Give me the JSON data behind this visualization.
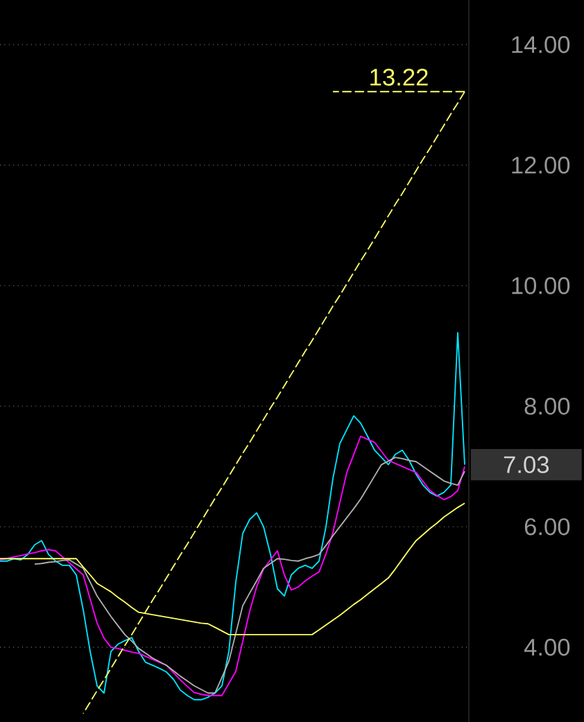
{
  "chart_data": {
    "type": "line",
    "ylim": [
      2.76,
      14.74
    ],
    "yticks": [
      {
        "value": 4,
        "label": "4.00"
      },
      {
        "value": 6,
        "label": "6.00"
      },
      {
        "value": 8,
        "label": "8.00"
      },
      {
        "value": 10,
        "label": "10.00"
      },
      {
        "value": 12,
        "label": "12.00"
      },
      {
        "value": 14,
        "label": "14.00"
      }
    ],
    "tick_labels": "y",
    "grid": "y",
    "marker": "none",
    "categories": [
      null,
      null,
      null,
      null,
      null,
      null,
      null,
      null,
      null,
      null,
      null,
      null,
      null,
      null,
      null,
      null,
      null,
      null,
      null,
      null,
      null,
      null,
      null,
      null,
      null,
      null,
      null,
      null,
      null,
      null,
      null,
      null,
      null,
      null,
      null,
      null,
      null,
      null,
      null,
      null,
      null,
      null,
      null,
      null,
      null,
      null,
      null,
      null,
      null,
      null,
      null,
      null,
      null,
      null,
      null,
      null,
      null,
      null,
      null,
      null,
      null,
      null,
      null,
      null,
      null,
      null,
      null,
      null
    ],
    "series": [
      {
        "color": "#00e5ff",
        "values": [
          5.43,
          5.43,
          5.47,
          5.45,
          5.54,
          5.7,
          5.77,
          5.54,
          5.43,
          5.36,
          5.36,
          5.2,
          4.62,
          3.93,
          3.36,
          3.24,
          3.93,
          4.05,
          4.11,
          4.16,
          3.93,
          3.75,
          3.7,
          3.65,
          3.59,
          3.47,
          3.29,
          3.2,
          3.13,
          3.13,
          3.17,
          3.24,
          3.36,
          3.93,
          5.08,
          5.89,
          6.12,
          6.23,
          6.0,
          5.54,
          4.97,
          4.85,
          5.2,
          5.31,
          5.36,
          5.31,
          5.43,
          6.0,
          6.8,
          7.38,
          7.61,
          7.84,
          7.72,
          7.5,
          7.27,
          7.15,
          7.03,
          7.2,
          7.27,
          7.1,
          6.87,
          6.69,
          6.57,
          6.51,
          6.57,
          6.69,
          9.22,
          7.03
        ]
      },
      {
        "color": "#ff00ff",
        "values": [
          5.45,
          5.47,
          5.5,
          5.52,
          5.55,
          5.57,
          5.6,
          5.62,
          5.6,
          5.5,
          5.4,
          5.3,
          5.2,
          4.8,
          4.4,
          4.15,
          4.0,
          3.98,
          3.95,
          3.92,
          3.9,
          3.85,
          3.8,
          3.75,
          3.7,
          3.58,
          3.46,
          3.35,
          3.25,
          3.22,
          3.2,
          3.2,
          3.2,
          3.4,
          3.6,
          4.1,
          4.6,
          5.0,
          5.3,
          5.45,
          5.6,
          5.2,
          4.95,
          5.0,
          5.1,
          5.18,
          5.25,
          5.55,
          5.9,
          6.4,
          6.9,
          7.2,
          7.5,
          7.45,
          7.4,
          7.25,
          7.1,
          7.05,
          7.0,
          6.95,
          6.9,
          6.75,
          6.6,
          6.52,
          6.45,
          6.5,
          6.6,
          7.0
        ]
      },
      {
        "color": "#b0b0b0",
        "values": [
          null,
          null,
          null,
          null,
          null,
          5.38,
          5.39,
          5.41,
          5.42,
          5.44,
          5.45,
          5.38,
          5.31,
          5.08,
          4.85,
          4.68,
          4.51,
          4.36,
          4.21,
          4.1,
          3.98,
          3.9,
          3.82,
          3.76,
          3.7,
          3.61,
          3.52,
          3.44,
          3.36,
          3.3,
          3.24,
          3.24,
          3.5,
          3.77,
          4.23,
          4.69,
          4.9,
          5.1,
          5.31,
          5.39,
          5.47,
          5.46,
          5.44,
          5.43,
          5.47,
          5.5,
          5.54,
          5.69,
          5.85,
          6.0,
          6.15,
          6.3,
          6.46,
          6.65,
          6.84,
          7.03,
          7.09,
          7.15,
          7.13,
          7.1,
          7.08,
          7.0,
          6.92,
          6.84,
          6.76,
          6.72,
          6.69,
          6.92
        ]
      },
      {
        "color": "#ffff66",
        "values": [
          5.47,
          5.47,
          5.47,
          5.47,
          5.47,
          5.47,
          5.47,
          5.47,
          5.47,
          5.47,
          5.47,
          5.47,
          5.33,
          5.2,
          5.06,
          4.99,
          4.92,
          4.83,
          4.75,
          4.66,
          4.58,
          4.56,
          4.54,
          4.52,
          4.5,
          4.48,
          4.46,
          4.44,
          4.42,
          4.4,
          4.39,
          4.33,
          4.27,
          4.21,
          4.21,
          4.21,
          4.21,
          4.21,
          4.21,
          4.21,
          4.21,
          4.21,
          4.21,
          4.21,
          4.21,
          4.21,
          4.29,
          4.37,
          4.45,
          4.53,
          4.62,
          4.71,
          4.79,
          4.88,
          4.97,
          5.06,
          5.15,
          5.3,
          5.46,
          5.62,
          5.77,
          5.87,
          5.97,
          6.06,
          6.16,
          6.24,
          6.32,
          6.39
        ]
      },
      {
        "color": "#ffff66",
        "line_style": "dashed",
        "values": [
          null,
          null,
          null,
          null,
          null,
          null,
          null,
          null,
          null,
          null,
          null,
          null,
          2.9,
          3.09,
          3.28,
          3.46,
          3.65,
          3.84,
          4.03,
          4.21,
          4.4,
          4.59,
          4.78,
          4.96,
          5.15,
          5.34,
          5.53,
          5.71,
          5.9,
          6.09,
          6.28,
          6.47,
          6.65,
          6.84,
          7.03,
          7.22,
          7.4,
          7.59,
          7.78,
          7.97,
          8.15,
          8.34,
          8.53,
          8.72,
          8.91,
          9.09,
          9.28,
          9.47,
          9.66,
          9.84,
          10.03,
          10.22,
          10.41,
          10.59,
          10.78,
          10.97,
          11.16,
          11.35,
          11.53,
          11.72,
          11.91,
          12.1,
          12.28,
          12.47,
          12.66,
          12.85,
          13.03,
          13.22
        ]
      },
      {
        "color": "#ffff66",
        "line_style": "dashed",
        "values": [
          null,
          null,
          null,
          null,
          null,
          null,
          null,
          null,
          null,
          null,
          null,
          null,
          null,
          null,
          null,
          null,
          null,
          null,
          null,
          null,
          null,
          null,
          null,
          null,
          null,
          null,
          null,
          null,
          null,
          null,
          null,
          null,
          null,
          null,
          null,
          null,
          null,
          null,
          null,
          null,
          null,
          null,
          null,
          null,
          null,
          null,
          null,
          null,
          13.22,
          13.22,
          13.22,
          13.22,
          13.22,
          13.22,
          13.22,
          13.22,
          13.22,
          13.22,
          13.22,
          13.22,
          13.22,
          13.22,
          13.22,
          13.22,
          13.22,
          13.22,
          13.22,
          13.22
        ]
      }
    ],
    "annotations": [
      {
        "text": "13.22",
        "y": 13.22
      },
      "7.03"
    ]
  }
}
